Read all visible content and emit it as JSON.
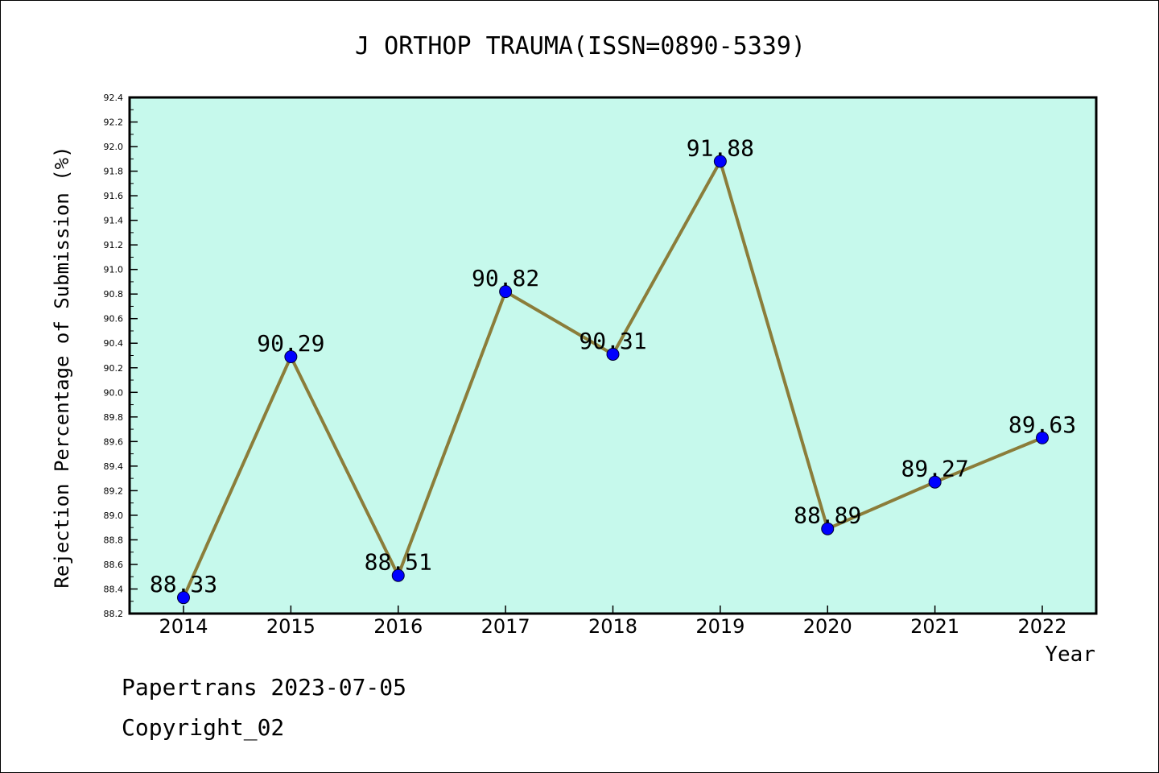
{
  "chart_data": {
    "type": "line",
    "title": "J ORTHOP TRAUMA(ISSN=0890-5339)",
    "xlabel": "Year",
    "ylabel": "Rejection Percentage of Submission (%)",
    "categories": [
      "2014",
      "2015",
      "2016",
      "2017",
      "2018",
      "2019",
      "2020",
      "2021",
      "2022"
    ],
    "values": [
      88.33,
      90.29,
      88.51,
      90.82,
      90.31,
      91.88,
      88.89,
      89.27,
      89.63
    ],
    "data_labels": [
      "88.33",
      "90.29",
      "88.51",
      "90.82",
      "90.31",
      "91.88",
      "88.89",
      "89.27",
      "89.63"
    ],
    "ylim": [
      88.2,
      92.4
    ],
    "y_ticks": [
      "88.2",
      "88.4",
      "88.6",
      "88.8",
      "89.0",
      "89.2",
      "89.4",
      "89.6",
      "89.8",
      "90.0",
      "90.2",
      "90.4",
      "90.6",
      "90.8",
      "91.0",
      "91.2",
      "91.4",
      "91.6",
      "91.8",
      "92.0",
      "92.2",
      "92.4"
    ],
    "grid": false,
    "legend": "none",
    "colors": {
      "plot_background": "#c6f9ec",
      "line": "#8b7d3a",
      "marker": "#0000ff"
    }
  },
  "footer": {
    "line1": "Papertrans 2023-07-05",
    "line2": "Copyright_02"
  }
}
